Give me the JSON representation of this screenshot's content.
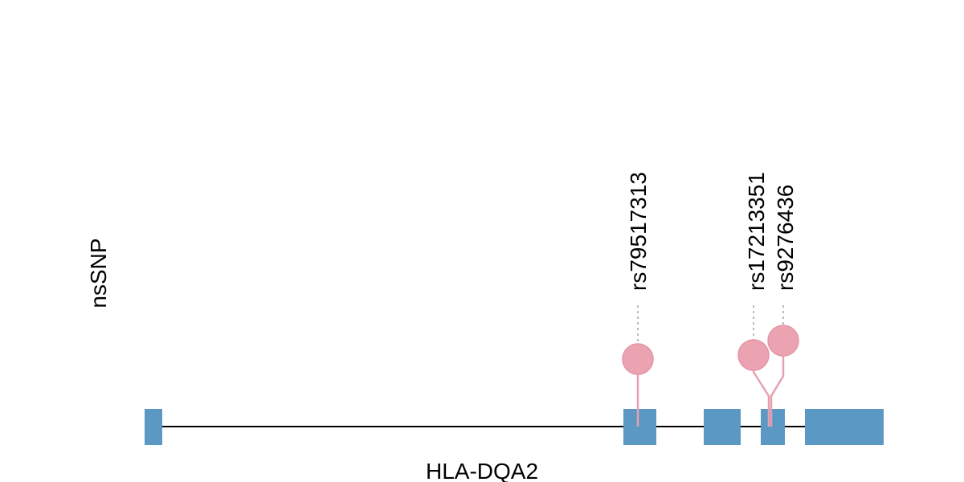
{
  "track_label": "nsSNP",
  "gene": "HLA-DQA2",
  "snps": [
    {
      "label": "rs79517313"
    },
    {
      "label": "rs17213351"
    },
    {
      "label": "rs9276436"
    }
  ]
}
